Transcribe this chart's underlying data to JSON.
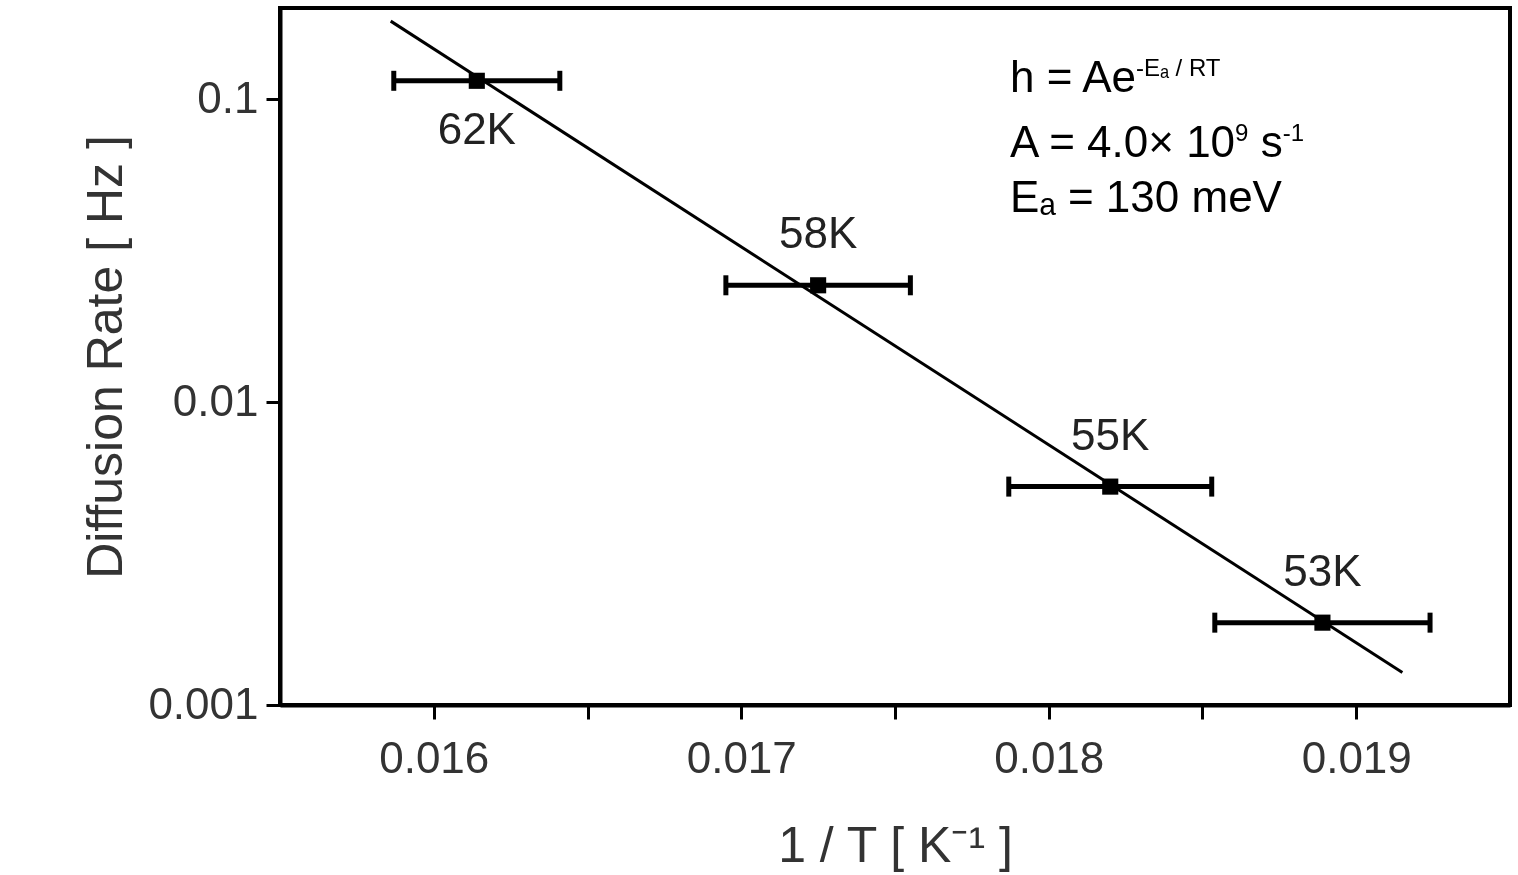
{
  "chart_data": {
    "type": "scatter",
    "xlabel": "1 / T [ K⁻¹ ]",
    "ylabel": "Diffusion Rate [ Hz ]",
    "xlim": [
      0.0155,
      0.0195
    ],
    "ylim": [
      0.001,
      0.2
    ],
    "log": "y",
    "grid": false,
    "xticks": [
      0.016,
      {
        "value": 0.0165,
        "label": null
      },
      0.017,
      {
        "value": 0.0175,
        "label": null
      },
      0.018,
      {
        "value": 0.0185,
        "label": null
      },
      0.019
    ],
    "yticks": [
      0.001,
      0.01,
      0.1
    ],
    "series": [
      {
        "marker": "square",
        "color": "#000000",
        "x": [
          0.01614,
          0.01725,
          0.0182,
          0.01889
        ],
        "values": [
          0.115,
          0.0243,
          0.00526,
          0.00187
        ],
        "xerrors": [
          0.00027,
          0.0003,
          0.00033,
          0.00035
        ]
      },
      {
        "type": "line",
        "color": "#000000",
        "x": [
          0.01586,
          0.01915
        ],
        "values": [
          0.181,
          0.00128
        ]
      }
    ],
    "annotations": [
      {
        "text": "62K",
        "x": 0.01614,
        "y": 0.115
      },
      {
        "text": "58K",
        "x": 0.01725,
        "y": 0.0243
      },
      {
        "text": "55K",
        "x": 0.0182,
        "y": 0.00526
      },
      {
        "text": "53K",
        "x": 0.01889,
        "y": 0.00187
      },
      "h = Ae$^{-Eₐ / RT}$",
      "A = 4.0× 10$^{9}$ s$^{-1}$",
      "Eₐ = 130 meV"
    ]
  }
}
